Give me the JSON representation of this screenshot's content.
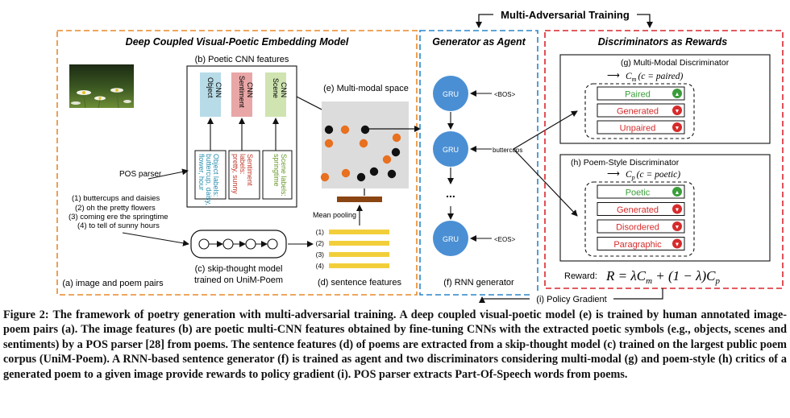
{
  "top_label": "Multi-Adversarial Training",
  "panels": {
    "embedding_title": "Deep Coupled Visual-Poetic Embedding Model",
    "generator_title": "Generator as Agent",
    "discriminator_title": "Discriminators as Rewards"
  },
  "cnn": {
    "title": "(b) Poetic CNN features",
    "columns": [
      {
        "name": "Object CNN",
        "line1": "Object",
        "line2": "CNN",
        "color": "#b8dbe8",
        "labels_line1": "Object labels:",
        "labels_line2": "buttercup, daisy,",
        "labels_line3": "flower, hour",
        "label_color": "#2a8fb0"
      },
      {
        "name": "Sentiment CNN",
        "line1": "Sentiment",
        "line2": "CNN",
        "color": "#e9a6a6",
        "labels_line1": "Sentiment",
        "labels_line2": "labels:",
        "labels_line3": "pretty, sunny",
        "label_color": "#c0392b"
      },
      {
        "name": "Scene CNN",
        "line1": "Scene",
        "line2": "CNN",
        "color": "#cfe4b0",
        "labels_line1": "Scene labels:",
        "labels_line2": "springtime",
        "labels_line3": "",
        "label_color": "#6b9a2e"
      }
    ]
  },
  "left": {
    "pos_parser": "POS parser",
    "poem_lines": [
      "(1) buttercups and daisies",
      "(2) oh the pretty flowers",
      "(3) coming ere the springtime",
      "(4) to tell of sunny hours"
    ],
    "image_caption": "(a) image and poem pairs",
    "skip_line1": "(c) skip-thought model",
    "skip_line2": "trained on UniM-Poem"
  },
  "multimodal": {
    "title": "(e) Multi-modal space",
    "mean_pooling": "Mean pooling",
    "sentence_caption": "(d) sentence features",
    "feature_labels": [
      "(1)",
      "(2)",
      "(3)",
      "(4)"
    ]
  },
  "generator": {
    "cell_label": "GRU",
    "bos": "<BOS>",
    "word": "buttercups",
    "eos": "<EOS>",
    "ellipsis": "...",
    "caption": "(f) RNN generator"
  },
  "discriminators": {
    "mm_title": "(g) Multi-Modal Discriminator",
    "mm_formula_c": "C",
    "mm_formula_sub": "m",
    "mm_formula_rest": "(c = paired)",
    "mm_items": [
      {
        "label": "Paired",
        "color": "#3a9e3a",
        "icon": "thumb-up-icon"
      },
      {
        "label": "Generated",
        "color": "#d62b2b",
        "icon": "thumb-down-icon"
      },
      {
        "label": "Unpaired",
        "color": "#d62b2b",
        "icon": "thumb-down-icon"
      }
    ],
    "ps_title": "(h) Poem-Style Discriminator",
    "ps_formula_c": "C",
    "ps_formula_sub": "p",
    "ps_formula_rest": "(c = poetic)",
    "ps_items": [
      {
        "label": "Poetic",
        "color": "#3a9e3a",
        "icon": "thumb-up-icon"
      },
      {
        "label": "Generated",
        "color": "#d62b2b",
        "icon": "thumb-down-icon"
      },
      {
        "label": "Disordered",
        "color": "#d62b2b",
        "icon": "thumb-down-icon"
      },
      {
        "label": "Paragraphic",
        "color": "#d62b2b",
        "icon": "thumb-down-icon"
      }
    ],
    "reward_label": "Reward:",
    "reward_formula": "R = λC",
    "reward_sub_m": "m",
    "reward_mid": " + (1 − λ)C",
    "reward_sub_p": "p"
  },
  "policy_gradient": "(i) Policy Gradient",
  "caption": {
    "lead": "Figure 2:",
    "text": "The framework of poetry generation with multi-adversarial training. A deep coupled visual-poetic model (e) is trained by human annotated image-poem pairs (a). The image features (b) are poetic multi-CNN features obtained by fine-tuning CNNs with the extracted poetic symbols (e.g., objects, scenes and sentiments) by a POS parser [28] from poems. The sentence features (d) of poems are extracted from a skip-thought model (c) trained on the largest public poem corpus (UniM-Poem). A RNN-based sentence generator (f) is trained as agent and two discriminators considering multi-modal (g) and poem-style (h) critics of a generated poem to a given image provide rewards to policy gradient (i). POS parser extracts Part-Of-Speech words from poems."
  },
  "colors": {
    "embedding_border": "#e8892a",
    "generator_border": "#2a86c8",
    "discriminator_border": "#d8262e",
    "gru_fill": "#4a8fd4",
    "dot_orange": "#e8701f",
    "dot_black": "#111111",
    "feature_bar": "#f2cf3a",
    "pooling_bar": "#8b4513"
  }
}
